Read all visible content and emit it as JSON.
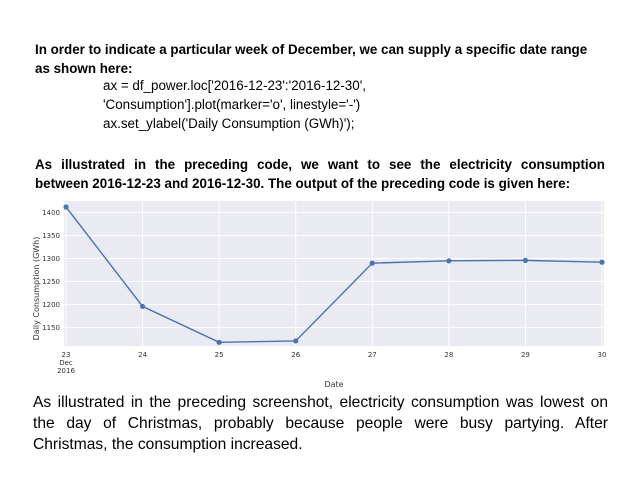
{
  "intro": "In order to indicate a particular week of December, we can supply a specific date range as shown here:",
  "code_lines": [
    "ax = df_power.loc['2016-12-23':'2016-12-30',",
    "'Consumption'].plot(marker='o', linestyle='-')",
    "ax.set_ylabel('Daily Consumption (GWh)');"
  ],
  "explain_main": "As illustrated in the preceding code, we want to see the electricity consumption",
  "explain_last": "between 2016-12-23 and 2016-12-30. The output of the preceding code is given here:",
  "outro": "As illustrated in the preceding screenshot, electricity consumption was lowest on the day of Christmas, probably because people were busy partying. After Christmas, the consumption increased.",
  "colors": {
    "line": "#4c72b0",
    "plot_bg": "#eaeaf2",
    "grid": "#ffffff"
  },
  "chart_data": {
    "type": "line",
    "xlabel": "Date",
    "ylabel": "Daily Consumption (GWh)",
    "x": [
      "2016-12-23",
      "2016-12-24",
      "2016-12-25",
      "2016-12-26",
      "2016-12-27",
      "2016-12-28",
      "2016-12-29",
      "2016-12-30"
    ],
    "xtick_labels": [
      "23",
      "24",
      "25",
      "26",
      "27",
      "28",
      "29",
      "30"
    ],
    "xtick_sublabel": [
      "Dec",
      "2016"
    ],
    "values": [
      1412,
      1196,
      1118,
      1121,
      1290,
      1295,
      1296,
      1292
    ],
    "yticks": [
      1150,
      1200,
      1250,
      1300,
      1350,
      1400
    ],
    "ylim": [
      1110,
      1425
    ],
    "grid": true,
    "marker": "o"
  }
}
